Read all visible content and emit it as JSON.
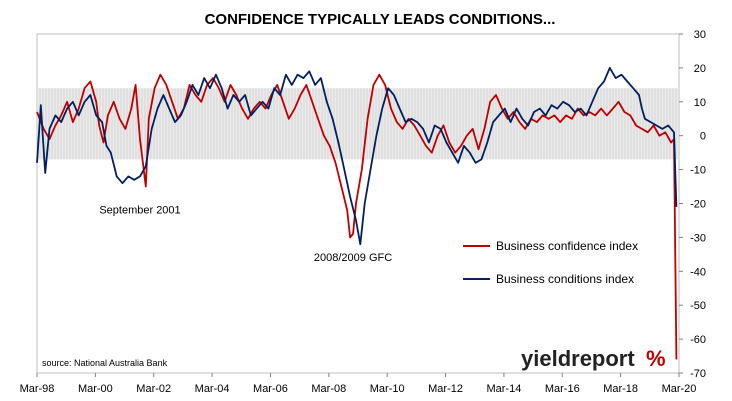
{
  "chart_data": {
    "type": "line",
    "title": "CONFIDENCE TYPICALLY LEADS CONDITIONS...",
    "x_tick_labels": [
      "Mar-98",
      "Mar-00",
      "Mar-02",
      "Mar-04",
      "Mar-06",
      "Mar-08",
      "Mar-10",
      "Mar-12",
      "Mar-14",
      "Mar-16",
      "Mar-18",
      "Mar-20"
    ],
    "x_range": [
      1998.17,
      2020.17
    ],
    "ylim": [
      -70,
      30
    ],
    "y_ticks": [
      30,
      20,
      10,
      0,
      -10,
      -20,
      -30,
      -40,
      -50,
      -60,
      -70
    ],
    "y_axis_side": "right",
    "grid": false,
    "shaded_band": [
      -7,
      14
    ],
    "annotations": [
      {
        "text": "September 2001",
        "x": 2001.7,
        "y": -23
      },
      {
        "text": "2008/2009 GFC",
        "x": 2009.0,
        "y": -37
      }
    ],
    "legend_position": "middle-right",
    "series": [
      {
        "name": "Business confidence index",
        "color": "#c00000",
        "points": [
          [
            1998.17,
            7
          ],
          [
            1998.4,
            2
          ],
          [
            1998.6,
            -1
          ],
          [
            1998.8,
            3
          ],
          [
            1999.0,
            6
          ],
          [
            1999.2,
            10
          ],
          [
            1999.4,
            4
          ],
          [
            1999.6,
            8
          ],
          [
            1999.8,
            14
          ],
          [
            2000.0,
            16
          ],
          [
            2000.2,
            10
          ],
          [
            2000.3,
            3
          ],
          [
            2000.45,
            -2
          ],
          [
            2000.6,
            6
          ],
          [
            2000.8,
            10
          ],
          [
            2001.0,
            5
          ],
          [
            2001.2,
            2
          ],
          [
            2001.4,
            8
          ],
          [
            2001.55,
            15
          ],
          [
            2001.7,
            -1
          ],
          [
            2001.8,
            -8
          ],
          [
            2001.9,
            -15
          ],
          [
            2002.0,
            5
          ],
          [
            2002.2,
            14
          ],
          [
            2002.4,
            18
          ],
          [
            2002.6,
            15
          ],
          [
            2002.8,
            10
          ],
          [
            2003.0,
            5
          ],
          [
            2003.2,
            8
          ],
          [
            2003.4,
            15
          ],
          [
            2003.6,
            12
          ],
          [
            2003.8,
            10
          ],
          [
            2004.0,
            15
          ],
          [
            2004.2,
            17
          ],
          [
            2004.4,
            14
          ],
          [
            2004.6,
            10
          ],
          [
            2004.8,
            15
          ],
          [
            2005.0,
            12
          ],
          [
            2005.2,
            8
          ],
          [
            2005.4,
            5
          ],
          [
            2005.6,
            8
          ],
          [
            2005.8,
            10
          ],
          [
            2006.0,
            8
          ],
          [
            2006.2,
            12
          ],
          [
            2006.4,
            15
          ],
          [
            2006.6,
            10
          ],
          [
            2006.8,
            5
          ],
          [
            2007.0,
            8
          ],
          [
            2007.2,
            12
          ],
          [
            2007.4,
            15
          ],
          [
            2007.6,
            10
          ],
          [
            2007.8,
            5
          ],
          [
            2008.0,
            0
          ],
          [
            2008.2,
            -3
          ],
          [
            2008.4,
            -8
          ],
          [
            2008.6,
            -15
          ],
          [
            2008.8,
            -22
          ],
          [
            2008.9,
            -30
          ],
          [
            2009.0,
            -29
          ],
          [
            2009.1,
            -20
          ],
          [
            2009.3,
            -10
          ],
          [
            2009.5,
            5
          ],
          [
            2009.7,
            15
          ],
          [
            2009.9,
            18
          ],
          [
            2010.1,
            15
          ],
          [
            2010.3,
            8
          ],
          [
            2010.5,
            4
          ],
          [
            2010.7,
            2
          ],
          [
            2010.9,
            5
          ],
          [
            2011.1,
            3
          ],
          [
            2011.3,
            0
          ],
          [
            2011.5,
            -3
          ],
          [
            2011.7,
            -5
          ],
          [
            2011.9,
            0
          ],
          [
            2012.1,
            3
          ],
          [
            2012.3,
            -2
          ],
          [
            2012.5,
            -5
          ],
          [
            2012.7,
            -3
          ],
          [
            2012.9,
            0
          ],
          [
            2013.1,
            2
          ],
          [
            2013.3,
            -4
          ],
          [
            2013.5,
            2
          ],
          [
            2013.7,
            10
          ],
          [
            2013.9,
            12
          ],
          [
            2014.1,
            8
          ],
          [
            2014.3,
            5
          ],
          [
            2014.5,
            7
          ],
          [
            2014.7,
            4
          ],
          [
            2014.9,
            2
          ],
          [
            2015.1,
            5
          ],
          [
            2015.3,
            4
          ],
          [
            2015.5,
            6
          ],
          [
            2015.7,
            5
          ],
          [
            2015.9,
            6
          ],
          [
            2016.1,
            4
          ],
          [
            2016.3,
            6
          ],
          [
            2016.5,
            5
          ],
          [
            2016.7,
            8
          ],
          [
            2016.9,
            6
          ],
          [
            2017.1,
            7
          ],
          [
            2017.3,
            6
          ],
          [
            2017.5,
            8
          ],
          [
            2017.7,
            6
          ],
          [
            2017.9,
            8
          ],
          [
            2018.1,
            10
          ],
          [
            2018.3,
            7
          ],
          [
            2018.5,
            6
          ],
          [
            2018.7,
            3
          ],
          [
            2018.9,
            2
          ],
          [
            2019.1,
            1
          ],
          [
            2019.3,
            3
          ],
          [
            2019.5,
            0
          ],
          [
            2019.7,
            1
          ],
          [
            2019.9,
            -2
          ],
          [
            2020.0,
            -1
          ],
          [
            2020.08,
            -66
          ]
        ]
      },
      {
        "name": "Business conditions index",
        "color": "#002060",
        "points": [
          [
            1998.17,
            -8
          ],
          [
            1998.3,
            9
          ],
          [
            1998.45,
            -11
          ],
          [
            1998.6,
            2
          ],
          [
            1998.8,
            6
          ],
          [
            1999.0,
            4
          ],
          [
            1999.2,
            8
          ],
          [
            1999.4,
            10
          ],
          [
            1999.6,
            6
          ],
          [
            1999.8,
            10
          ],
          [
            2000.0,
            12
          ],
          [
            2000.2,
            6
          ],
          [
            2000.4,
            4
          ],
          [
            2000.55,
            -3
          ],
          [
            2000.7,
            -5
          ],
          [
            2000.9,
            -12
          ],
          [
            2001.1,
            -14
          ],
          [
            2001.3,
            -12
          ],
          [
            2001.5,
            -13
          ],
          [
            2001.7,
            -12
          ],
          [
            2001.9,
            -9
          ],
          [
            2002.1,
            2
          ],
          [
            2002.3,
            8
          ],
          [
            2002.5,
            12
          ],
          [
            2002.7,
            8
          ],
          [
            2002.9,
            4
          ],
          [
            2003.1,
            6
          ],
          [
            2003.3,
            10
          ],
          [
            2003.5,
            15
          ],
          [
            2003.7,
            12
          ],
          [
            2003.9,
            17
          ],
          [
            2004.1,
            14
          ],
          [
            2004.3,
            18
          ],
          [
            2004.5,
            14
          ],
          [
            2004.7,
            8
          ],
          [
            2004.9,
            12
          ],
          [
            2005.1,
            10
          ],
          [
            2005.3,
            12
          ],
          [
            2005.5,
            6
          ],
          [
            2005.7,
            8
          ],
          [
            2005.9,
            10
          ],
          [
            2006.1,
            8
          ],
          [
            2006.3,
            14
          ],
          [
            2006.5,
            12
          ],
          [
            2006.7,
            18
          ],
          [
            2006.9,
            15
          ],
          [
            2007.1,
            18
          ],
          [
            2007.3,
            17
          ],
          [
            2007.5,
            19
          ],
          [
            2007.7,
            15
          ],
          [
            2007.9,
            17
          ],
          [
            2008.1,
            10
          ],
          [
            2008.3,
            5
          ],
          [
            2008.5,
            -2
          ],
          [
            2008.7,
            -10
          ],
          [
            2008.9,
            -18
          ],
          [
            2009.1,
            -25
          ],
          [
            2009.25,
            -32
          ],
          [
            2009.4,
            -20
          ],
          [
            2009.6,
            -10
          ],
          [
            2009.8,
            0
          ],
          [
            2010.0,
            8
          ],
          [
            2010.2,
            14
          ],
          [
            2010.4,
            12
          ],
          [
            2010.6,
            8
          ],
          [
            2010.8,
            4
          ],
          [
            2011.0,
            5
          ],
          [
            2011.2,
            4
          ],
          [
            2011.4,
            2
          ],
          [
            2011.6,
            -2
          ],
          [
            2011.8,
            3
          ],
          [
            2012.0,
            2
          ],
          [
            2012.2,
            -2
          ],
          [
            2012.4,
            -5
          ],
          [
            2012.6,
            -8
          ],
          [
            2012.8,
            -3
          ],
          [
            2013.0,
            -5
          ],
          [
            2013.2,
            -8
          ],
          [
            2013.4,
            -7
          ],
          [
            2013.6,
            -2
          ],
          [
            2013.8,
            4
          ],
          [
            2014.0,
            6
          ],
          [
            2014.2,
            8
          ],
          [
            2014.4,
            4
          ],
          [
            2014.6,
            8
          ],
          [
            2014.8,
            5
          ],
          [
            2015.0,
            3
          ],
          [
            2015.2,
            7
          ],
          [
            2015.4,
            8
          ],
          [
            2015.6,
            6
          ],
          [
            2015.8,
            9
          ],
          [
            2016.0,
            8
          ],
          [
            2016.2,
            10
          ],
          [
            2016.4,
            9
          ],
          [
            2016.6,
            7
          ],
          [
            2016.8,
            8
          ],
          [
            2017.0,
            6
          ],
          [
            2017.2,
            10
          ],
          [
            2017.4,
            14
          ],
          [
            2017.6,
            16
          ],
          [
            2017.8,
            20
          ],
          [
            2018.0,
            17
          ],
          [
            2018.2,
            18
          ],
          [
            2018.4,
            16
          ],
          [
            2018.6,
            14
          ],
          [
            2018.8,
            12
          ],
          [
            2018.9,
            8
          ],
          [
            2019.0,
            5
          ],
          [
            2019.2,
            4
          ],
          [
            2019.4,
            3
          ],
          [
            2019.6,
            2
          ],
          [
            2019.8,
            3
          ],
          [
            2020.0,
            1
          ],
          [
            2020.08,
            -21
          ]
        ]
      }
    ]
  },
  "footer": {
    "source": "source: National Australia Bank",
    "brand_text": "yieldreport",
    "brand_symbol": "%"
  },
  "colors": {
    "confidence": "#c00000",
    "conditions": "#002060",
    "band": "#d9d9d9",
    "frame": "#bfbfbf"
  }
}
